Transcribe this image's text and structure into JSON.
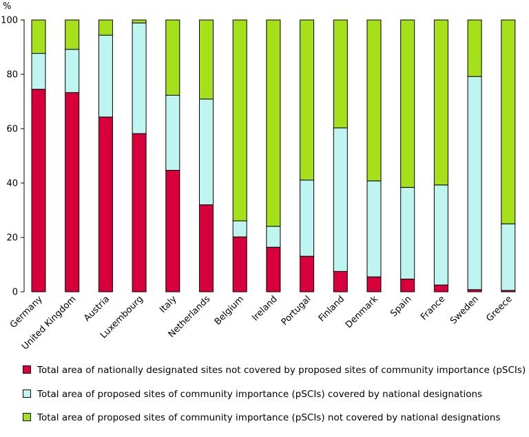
{
  "chart_data": {
    "type": "bar",
    "stacked": true,
    "ylabel": "%",
    "ylim": [
      0,
      100
    ],
    "yticks": [
      0,
      20,
      40,
      60,
      80,
      100
    ],
    "categories": [
      "Germany",
      "United Kingdom",
      "Austria",
      "Luxembourg",
      "Italy",
      "Netherlands",
      "Belgium",
      "Ireland",
      "Portugal",
      "Finland",
      "Denmark",
      "Spain",
      "France",
      "Sweden",
      "Greece"
    ],
    "series": [
      {
        "name": "Total area of nationally designated sites not covered by proposed sites of community importance (pSCIs)",
        "color": "#d8003c",
        "values": [
          74.5,
          73.3,
          64.3,
          58.2,
          44.7,
          32.0,
          20.2,
          16.4,
          13.1,
          7.5,
          5.5,
          4.7,
          2.5,
          0.8,
          0.5
        ]
      },
      {
        "name": "Total area of proposed sites of community importance (pSCIs) covered  by national designations",
        "color": "#bff5f0",
        "values": [
          13.2,
          15.9,
          30.1,
          40.7,
          27.6,
          38.9,
          5.9,
          7.7,
          28.0,
          52.8,
          35.3,
          33.7,
          36.8,
          78.4,
          24.5
        ]
      },
      {
        "name": "Total area of proposed sites of community importance (pSCIs) not covered by national designations",
        "color": "#a6e01a",
        "values": [
          12.3,
          10.8,
          5.6,
          1.1,
          27.7,
          29.1,
          73.9,
          75.9,
          58.9,
          39.7,
          59.2,
          61.6,
          60.7,
          20.8,
          75.0
        ]
      }
    ],
    "grid": false,
    "legend_position": "bottom"
  }
}
